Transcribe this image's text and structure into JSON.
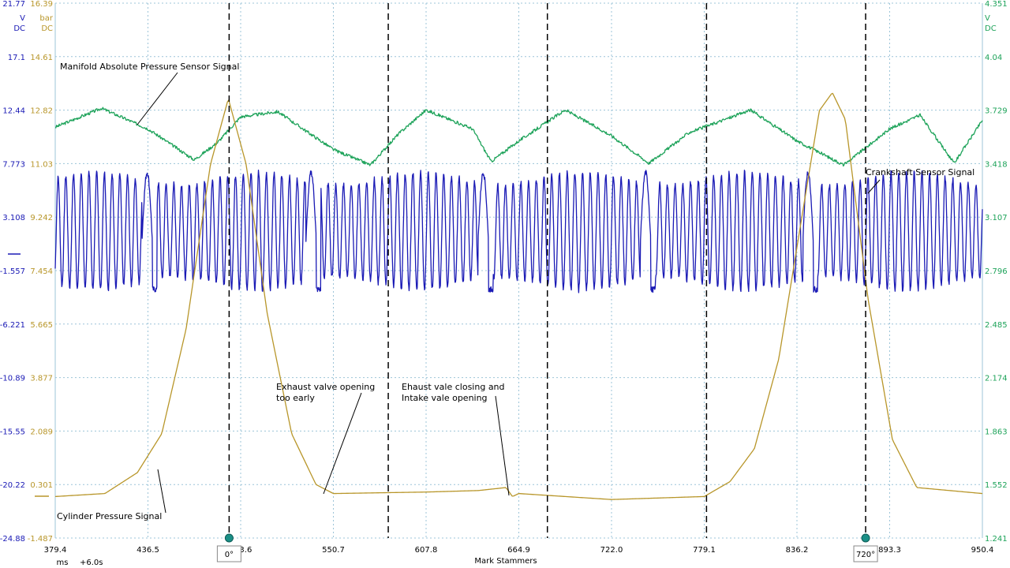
{
  "chart_data": {
    "type": "line",
    "credit": "Mark Stammers",
    "x_axis": {
      "unit": "ms",
      "offset_label": "+6.0s",
      "range": [
        379.4,
        950.4
      ],
      "ticks": [
        "379.4",
        "436.5",
        "493.6",
        "550.7",
        "607.8",
        "664.9",
        "722.0",
        "779.1",
        "836.2",
        "893.3",
        "950.4"
      ]
    },
    "axes": {
      "crank": {
        "color": "#1a1ab5",
        "unit_lines": [
          "V",
          "DC"
        ],
        "range": [
          -24.88,
          21.77
        ],
        "ticks": [
          "21.77",
          "17.1",
          "12.44",
          "7.773",
          "3.108",
          "-1.557",
          "-6.221",
          "-10.89",
          "-15.55",
          "-20.22",
          "-24.88"
        ]
      },
      "cyl": {
        "color": "#b8962a",
        "unit_lines": [
          "bar",
          "DC"
        ],
        "range": [
          -1.487,
          16.39
        ],
        "ticks": [
          "16.39",
          "14.61",
          "12.82",
          "11.03",
          "9.242",
          "7.454",
          "5.665",
          "3.877",
          "2.089",
          "0.301",
          "-1.487"
        ]
      },
      "map": {
        "color": "#1ea35a",
        "unit_lines": [
          "V",
          "DC"
        ],
        "range": [
          1.241,
          4.351
        ],
        "ticks": [
          "4.351",
          "4.04",
          "3.729",
          "3.418",
          "3.107",
          "2.796",
          "2.485",
          "2.174",
          "1.863",
          "1.552",
          "1.241"
        ]
      }
    },
    "series": [
      {
        "key": "map",
        "name": "Manifold Absolute Pressure Sensor Signal",
        "axis": "map",
        "color": "#1ea35a",
        "description": "sine-like MAP waveform between ~3.40 V and ~3.74 V",
        "points": [
          [
            379.4,
            3.63
          ],
          [
            407.9,
            3.74
          ],
          [
            436.5,
            3.62
          ],
          [
            465.0,
            3.44
          ],
          [
            479.3,
            3.54
          ],
          [
            493.6,
            3.69
          ],
          [
            516.4,
            3.72
          ],
          [
            550.7,
            3.5
          ],
          [
            573.5,
            3.41
          ],
          [
            590.7,
            3.59
          ],
          [
            607.8,
            3.73
          ],
          [
            636.4,
            3.62
          ],
          [
            647.8,
            3.43
          ],
          [
            664.9,
            3.55
          ],
          [
            693.5,
            3.73
          ],
          [
            722.0,
            3.58
          ],
          [
            745.0,
            3.42
          ],
          [
            770.0,
            3.6
          ],
          [
            779.1,
            3.63
          ],
          [
            807.6,
            3.73
          ],
          [
            836.2,
            3.55
          ],
          [
            865.0,
            3.41
          ],
          [
            893.3,
            3.62
          ],
          [
            912.0,
            3.7
          ],
          [
            933.0,
            3.42
          ],
          [
            950.4,
            3.67
          ]
        ]
      },
      {
        "key": "crank",
        "name": "Crankshaft Sensor Signal",
        "axis": "crank",
        "color": "#1a1ab5",
        "description": "high-frequency AC reluctor signal, approx. -2.5 V to +7.4 V, with missing-tooth gaps near 436, 537, 643, 743, 843 ms",
        "points": [
          [
            379.4,
            1.2
          ],
          [
            436.5,
            1.2
          ],
          [
            493.6,
            1.2
          ],
          [
            550.7,
            1.2
          ],
          [
            607.8,
            1.2
          ],
          [
            664.9,
            1.2
          ],
          [
            722.0,
            1.2
          ],
          [
            779.1,
            1.2
          ],
          [
            836.2,
            1.2
          ],
          [
            893.3,
            1.2
          ],
          [
            950.4,
            1.2
          ]
        ]
      },
      {
        "key": "cyl",
        "name": "Cylinder Pressure Signal",
        "axis": "cyl",
        "color": "#b8962a",
        "description": "in-cylinder pressure trace with compression peaks at 0 and 720 crank degrees",
        "points": [
          [
            379.4,
            -0.1
          ],
          [
            410.0,
            0.0
          ],
          [
            430.0,
            0.7
          ],
          [
            445.0,
            2.0
          ],
          [
            460.0,
            5.5
          ],
          [
            475.0,
            11.0
          ],
          [
            486.0,
            13.2
          ],
          [
            497.0,
            11.0
          ],
          [
            510.0,
            6.0
          ],
          [
            525.0,
            2.0
          ],
          [
            540.0,
            0.3
          ],
          [
            550.7,
            0.0
          ],
          [
            607.8,
            0.05
          ],
          [
            640.0,
            0.1
          ],
          [
            657.0,
            0.2
          ],
          [
            661.0,
            -0.1
          ],
          [
            664.9,
            0.0
          ],
          [
            722.0,
            -0.2
          ],
          [
            779.1,
            -0.1
          ],
          [
            795.0,
            0.4
          ],
          [
            810.0,
            1.5
          ],
          [
            825.0,
            4.5
          ],
          [
            840.0,
            9.5
          ],
          [
            850.0,
            12.8
          ],
          [
            858.0,
            13.4
          ],
          [
            866.0,
            12.5
          ],
          [
            880.0,
            6.5
          ],
          [
            895.0,
            1.8
          ],
          [
            910.0,
            0.2
          ],
          [
            950.4,
            0.0
          ]
        ]
      }
    ],
    "vertical_markers": [
      {
        "x": 486.5,
        "label": "0°"
      },
      {
        "x": 584.5,
        "label": ""
      },
      {
        "x": 682.5,
        "label": ""
      },
      {
        "x": 780.5,
        "label": ""
      },
      {
        "x": 878.5,
        "label": "720°"
      }
    ],
    "annotations": [
      {
        "text_lines": [
          "Manifold Absolute Pressure Sensor Signal"
        ],
        "target": "map"
      },
      {
        "text_lines": [
          "Crankshaft Sensor Signal"
        ],
        "target": "crank"
      },
      {
        "text_lines": [
          "Exhaust valve opening",
          "too early"
        ],
        "target": "cyl"
      },
      {
        "text_lines": [
          "Ehaust vale closing and",
          "Intake vale opening"
        ],
        "target": "cyl"
      },
      {
        "text_lines": [
          "Cylinder Pressure Signal"
        ],
        "target": "cyl"
      }
    ],
    "grid": true,
    "grid_style": "dotted"
  }
}
